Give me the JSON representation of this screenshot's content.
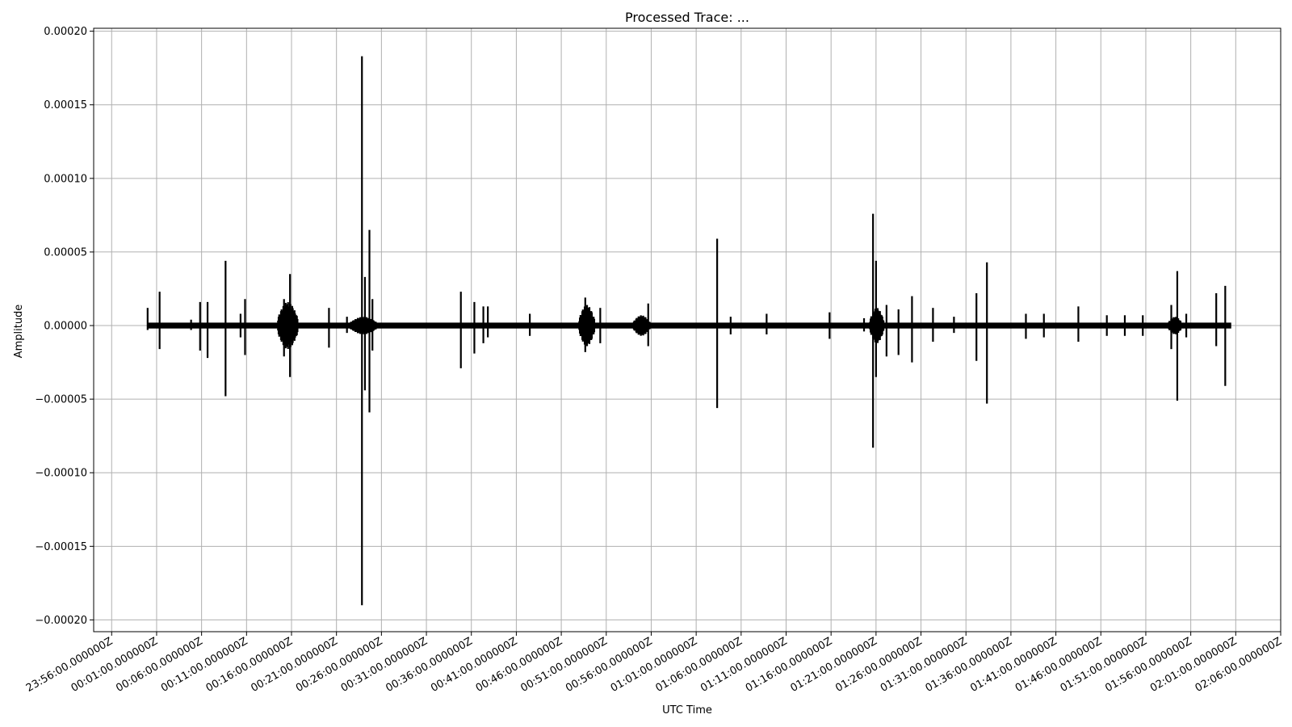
{
  "chart_data": {
    "type": "line",
    "title": "Processed Trace: ...",
    "xlabel": "UTC Time",
    "ylabel": "Amplitude",
    "x_unit": "UTC time",
    "y_ticks": [
      "0.00020",
      "0.00015",
      "0.00010",
      "0.00005",
      "0.00000",
      "−0.00005",
      "−0.00010",
      "−0.00015",
      "−0.00020"
    ],
    "y_tick_values": [
      0.0002,
      0.00015,
      0.0001,
      5e-05,
      0,
      -5e-05,
      -0.0001,
      -0.00015,
      -0.0002
    ],
    "ylim": [
      -0.000208,
      0.000202
    ],
    "x_ticks": [
      "23:56:00.000000Z",
      "00:01:00.000000Z",
      "00:06:00.000000Z",
      "00:11:00.000000Z",
      "00:16:00.000000Z",
      "00:21:00.000000Z",
      "00:26:00.000000Z",
      "00:31:00.000000Z",
      "00:36:00.000000Z",
      "00:41:00.000000Z",
      "00:46:00.000000Z",
      "00:51:00.000000Z",
      "00:56:00.000000Z",
      "01:01:00.000000Z",
      "01:06:00.000000Z",
      "01:11:00.000000Z",
      "01:16:00.000000Z",
      "01:21:00.000000Z",
      "01:26:00.000000Z",
      "01:31:00.000000Z",
      "01:36:00.000000Z",
      "01:41:00.000000Z",
      "01:46:00.000000Z",
      "01:51:00.000000Z",
      "01:56:00.000000Z",
      "02:01:00.000000Z",
      "02:06:00.000000Z"
    ],
    "xlim": [
      "23:54:00Z",
      "02:06:00Z"
    ],
    "series": [
      {
        "start": "00:00:00Z",
        "end": "02:00:30Z",
        "baseline_noise": 2e-06,
        "color": "#000000",
        "spikes": [
          {
            "t": "00:00:00Z",
            "max": 1.2e-05,
            "min": -3e-06
          },
          {
            "t": "00:01:20Z",
            "max": 2.3e-05,
            "min": -1.6e-05
          },
          {
            "t": "00:04:50Z",
            "max": 4e-06,
            "min": -3e-06
          },
          {
            "t": "00:05:50Z",
            "max": 1.6e-05,
            "min": -1.7e-05
          },
          {
            "t": "00:06:40Z",
            "max": 1.6e-05,
            "min": -2.2e-05
          },
          {
            "t": "00:08:40Z",
            "max": 4.4e-05,
            "min": -4.8e-05
          },
          {
            "t": "00:10:20Z",
            "max": 8e-06,
            "min": -8e-06
          },
          {
            "t": "00:10:50Z",
            "max": 1.8e-05,
            "min": -2e-05
          },
          {
            "t": "00:15:10Z",
            "max": 1.8e-05,
            "min": -2.1e-05
          },
          {
            "t": "00:15:50Z",
            "max": 3.5e-05,
            "min": -3.5e-05
          },
          {
            "t": "00:20:10Z",
            "max": 1.2e-05,
            "min": -1.5e-05
          },
          {
            "t": "00:22:10Z",
            "max": 6e-06,
            "min": -5e-06
          },
          {
            "t": "00:23:50Z",
            "max": 0.000183,
            "min": -0.00019
          },
          {
            "t": "00:24:10Z",
            "max": 3.3e-05,
            "min": -4.4e-05
          },
          {
            "t": "00:24:40Z",
            "max": 6.5e-05,
            "min": -5.9e-05
          },
          {
            "t": "00:25:00Z",
            "max": 1.8e-05,
            "min": -1.7e-05
          },
          {
            "t": "00:34:50Z",
            "max": 2.3e-05,
            "min": -2.9e-05
          },
          {
            "t": "00:36:20Z",
            "max": 1.6e-05,
            "min": -1.9e-05
          },
          {
            "t": "00:37:20Z",
            "max": 1.3e-05,
            "min": -1.2e-05
          },
          {
            "t": "00:37:50Z",
            "max": 1.3e-05,
            "min": -8e-06
          },
          {
            "t": "00:42:30Z",
            "max": 8e-06,
            "min": -7e-06
          },
          {
            "t": "00:48:40Z",
            "max": 1.9e-05,
            "min": -1.8e-05
          },
          {
            "t": "00:50:20Z",
            "max": 1.2e-05,
            "min": -1.2e-05
          },
          {
            "t": "00:55:40Z",
            "max": 1.5e-05,
            "min": -1.4e-05
          },
          {
            "t": "01:03:20Z",
            "max": 5.9e-05,
            "min": -5.6e-05
          },
          {
            "t": "01:04:50Z",
            "max": 6e-06,
            "min": -6e-06
          },
          {
            "t": "01:08:50Z",
            "max": 8e-06,
            "min": -6e-06
          },
          {
            "t": "01:15:50Z",
            "max": 9e-06,
            "min": -9e-06
          },
          {
            "t": "01:19:40Z",
            "max": 5e-06,
            "min": -4e-06
          },
          {
            "t": "01:20:40Z",
            "max": 7.6e-05,
            "min": -8.3e-05
          },
          {
            "t": "01:21:00Z",
            "max": 4.4e-05,
            "min": -3.5e-05
          },
          {
            "t": "01:22:10Z",
            "max": 1.4e-05,
            "min": -2.1e-05
          },
          {
            "t": "01:23:30Z",
            "max": 1.1e-05,
            "min": -2e-05
          },
          {
            "t": "01:25:00Z",
            "max": 2e-05,
            "min": -2.5e-05
          },
          {
            "t": "01:27:20Z",
            "max": 1.2e-05,
            "min": -1.1e-05
          },
          {
            "t": "01:29:40Z",
            "max": 6e-06,
            "min": -5e-06
          },
          {
            "t": "01:32:10Z",
            "max": 2.2e-05,
            "min": -2.4e-05
          },
          {
            "t": "01:33:20Z",
            "max": 4.3e-05,
            "min": -5.3e-05
          },
          {
            "t": "01:37:40Z",
            "max": 8e-06,
            "min": -9e-06
          },
          {
            "t": "01:39:40Z",
            "max": 8e-06,
            "min": -8e-06
          },
          {
            "t": "01:43:30Z",
            "max": 1.3e-05,
            "min": -1.1e-05
          },
          {
            "t": "01:46:40Z",
            "max": 7e-06,
            "min": -7e-06
          },
          {
            "t": "01:48:40Z",
            "max": 7e-06,
            "min": -7e-06
          },
          {
            "t": "01:50:40Z",
            "max": 7e-06,
            "min": -7e-06
          },
          {
            "t": "01:53:50Z",
            "max": 1.4e-05,
            "min": -1.6e-05
          },
          {
            "t": "01:54:30Z",
            "max": 3.7e-05,
            "min": -5.1e-05
          },
          {
            "t": "01:55:30Z",
            "max": 8e-06,
            "min": -8e-06
          },
          {
            "t": "01:58:50Z",
            "max": 2.2e-05,
            "min": -1.4e-05
          },
          {
            "t": "01:59:50Z",
            "max": 2.7e-05,
            "min": -4.1e-05
          }
        ],
        "bursts": [
          {
            "start": "00:14:30Z",
            "end": "00:16:40Z",
            "amp": 1.6e-05
          },
          {
            "start": "00:22:30Z",
            "end": "00:25:30Z",
            "amp": 6e-06
          },
          {
            "start": "00:48:00Z",
            "end": "00:49:40Z",
            "amp": 1.4e-05
          },
          {
            "start": "00:54:00Z",
            "end": "00:55:50Z",
            "amp": 7e-06
          },
          {
            "start": "01:20:20Z",
            "end": "01:21:50Z",
            "amp": 1.2e-05
          },
          {
            "start": "01:53:30Z",
            "end": "01:55:00Z",
            "amp": 6e-06
          }
        ]
      }
    ],
    "grid": true,
    "legend": "none"
  }
}
